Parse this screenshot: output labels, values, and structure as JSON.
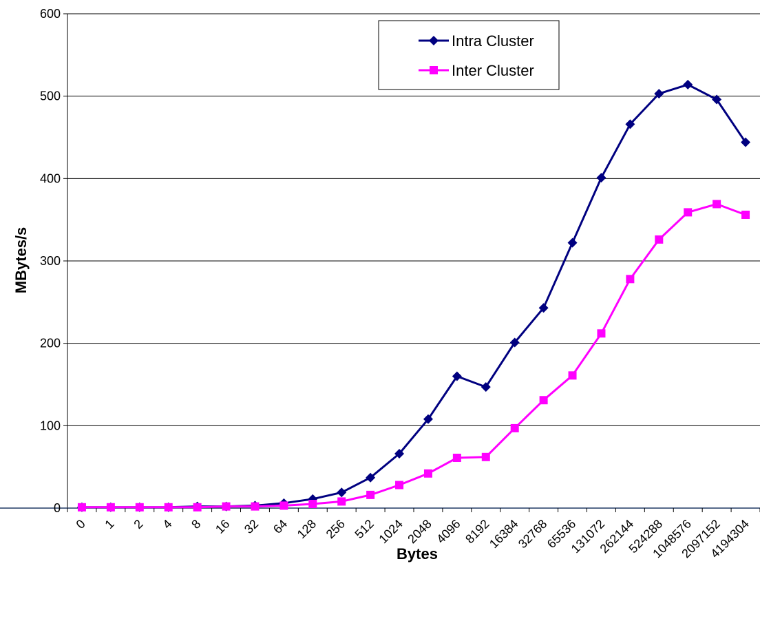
{
  "chart_data": {
    "type": "line",
    "title": "",
    "xlabel": "Bytes",
    "ylabel": "MBytes/s",
    "ylim": [
      0,
      600
    ],
    "yticks": [
      0,
      100,
      200,
      300,
      400,
      500,
      600
    ],
    "grid": "horizontal",
    "legend_position": "top-right",
    "categories": [
      "0",
      "1",
      "2",
      "4",
      "8",
      "16",
      "32",
      "64",
      "128",
      "256",
      "512",
      "1024",
      "2048",
      "4096",
      "8192",
      "16384",
      "32768",
      "65536",
      "131072",
      "262144",
      "524288",
      "1048576",
      "2097152",
      "4194304"
    ],
    "series": [
      {
        "name": "Intra Cluster",
        "color": "#000080",
        "marker": "diamond",
        "values": [
          1,
          1,
          1,
          1,
          2,
          2,
          3,
          6,
          11,
          19,
          37,
          66,
          108,
          160,
          147,
          201,
          243,
          322,
          401,
          466,
          503,
          514,
          496,
          444
        ]
      },
      {
        "name": "Inter Cluster",
        "color": "#ff00ff",
        "marker": "square",
        "values": [
          1,
          1,
          1,
          1,
          1,
          2,
          2,
          3,
          5,
          8,
          16,
          28,
          42,
          61,
          62,
          97,
          131,
          161,
          212,
          278,
          326,
          359,
          369,
          356
        ]
      }
    ]
  }
}
